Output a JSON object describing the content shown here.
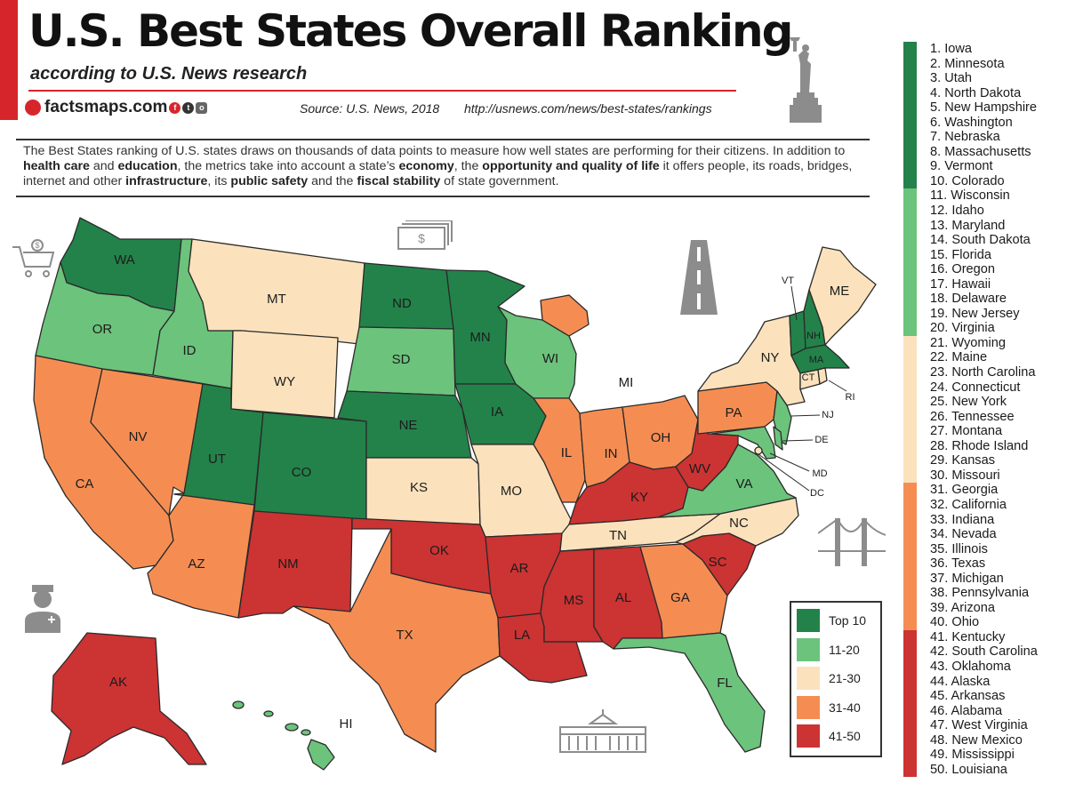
{
  "header": {
    "title": "U.S. Best States Overall Ranking",
    "subtitle": "according to U.S. News research",
    "logo": "factsmaps.com",
    "source": "Source: U.S. News, 2018",
    "url": "http://usnews.com/news/best-states/rankings"
  },
  "intro": {
    "p1": "The Best States ranking of U.S. states draws on thousands of data points to measure how well states are performing for their citizens. In addition to ",
    "k1": "health care",
    "p2": " and ",
    "k2": "education",
    "p3": ", the metrics take into account a state’s ",
    "k3": "economy",
    "p4": ", the ",
    "k4": "opportunity and quality of life",
    "p5": " it offers people, its roads, bridges, internet and other ",
    "k5": "infrastructure",
    "p6": ", its ",
    "k6": "public safety",
    "p7": " and the ",
    "k7": "fiscal stability",
    "p8": " of state government."
  },
  "colors": {
    "top10": "#23824a",
    "r11_20": "#6cc37c",
    "r21_30": "#fbe2bd",
    "r31_40": "#f58d53",
    "r41_50": "#cc3333",
    "accent": "#d7262b",
    "water": "#ffffff"
  },
  "legend": [
    {
      "label": "Top 10",
      "color": "#23824a"
    },
    {
      "label": "11-20",
      "color": "#6cc37c"
    },
    {
      "label": "21-30",
      "color": "#fbe2bd"
    },
    {
      "label": "31-40",
      "color": "#f58d53"
    },
    {
      "label": "41-50",
      "color": "#cc3333"
    }
  ],
  "ranking": [
    "1. Iowa",
    "2. Minnesota",
    "3. Utah",
    "4. North Dakota",
    "5. New Hampshire",
    "6. Washington",
    "7. Nebraska",
    "8. Massachusetts",
    "9. Vermont",
    "10. Colorado",
    "11. Wisconsin",
    "12. Idaho",
    "13. Maryland",
    "14. South Dakota",
    "15. Florida",
    "16. Oregon",
    "17. Hawaii",
    "18. Delaware",
    "19. New Jersey",
    "20. Virginia",
    "21. Wyoming",
    "22. Maine",
    "23. North Carolina",
    "24. Connecticut",
    "25. New York",
    "26. Tennessee",
    "27. Montana",
    "28. Rhode Island",
    "29. Kansas",
    "30. Missouri",
    "31. Georgia",
    "32. California",
    "33. Indiana",
    "34. Nevada",
    "35. Illinois",
    "36. Texas",
    "37. Michigan",
    "38. Pennsylvania",
    "39. Arizona",
    "40. Ohio",
    "41. Kentucky",
    "42. South Carolina",
    "43. Oklahoma",
    "44. Alaska",
    "45. Arkansas",
    "46. Alabama",
    "47. West Virginia",
    "48. New Mexico",
    "49. Mississippi",
    "50. Louisiana"
  ],
  "map_labels": {
    "WA": "WA",
    "OR": "OR",
    "CA": "CA",
    "ID": "ID",
    "NV": "NV",
    "MT": "MT",
    "WY": "WY",
    "UT": "UT",
    "AZ": "AZ",
    "CO": "CO",
    "NM": "NM",
    "ND": "ND",
    "SD": "SD",
    "NE": "NE",
    "KS": "KS",
    "OK": "OK",
    "TX": "TX",
    "MN": "MN",
    "IA": "IA",
    "MO": "MO",
    "AR": "AR",
    "LA": "LA",
    "WI": "WI",
    "IL": "IL",
    "MI": "MI",
    "IN": "IN",
    "OH": "OH",
    "KY": "KY",
    "TN": "TN",
    "MS": "MS",
    "AL": "AL",
    "GA": "GA",
    "FL": "FL",
    "SC": "SC",
    "NC": "NC",
    "VA": "VA",
    "WV": "WV",
    "PA": "PA",
    "NY": "NY",
    "VT": "VT",
    "NH": "NH",
    "ME": "ME",
    "MA": "MA",
    "CT": "CT",
    "RI": "RI",
    "NJ": "NJ",
    "DE": "DE",
    "MD": "MD",
    "DC": "DC",
    "AK": "AK",
    "HI": "HI"
  },
  "icons": [
    "statue-of-liberty-icon",
    "shopping-cart-icon",
    "money-icon",
    "road-icon",
    "bridge-icon",
    "doctor-icon",
    "white-house-icon"
  ]
}
